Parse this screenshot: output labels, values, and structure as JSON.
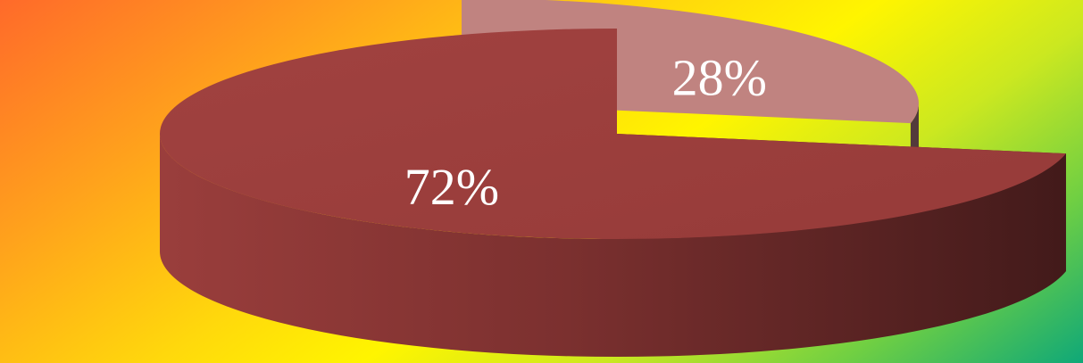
{
  "chart_data": {
    "type": "pie",
    "three_d": true,
    "exploded": true,
    "slices": [
      {
        "value": 28,
        "label": "28%",
        "top_color": "#c08380",
        "side_color": "#553a3b"
      },
      {
        "value": 72,
        "label": "72%",
        "top_color": "#9b3f3d",
        "side_color": "#6e2b2a"
      }
    ],
    "background_gradient": [
      "#ff6a2a",
      "#ffd80c",
      "#fff500",
      "#6fcf43",
      "#0fa878"
    ]
  }
}
